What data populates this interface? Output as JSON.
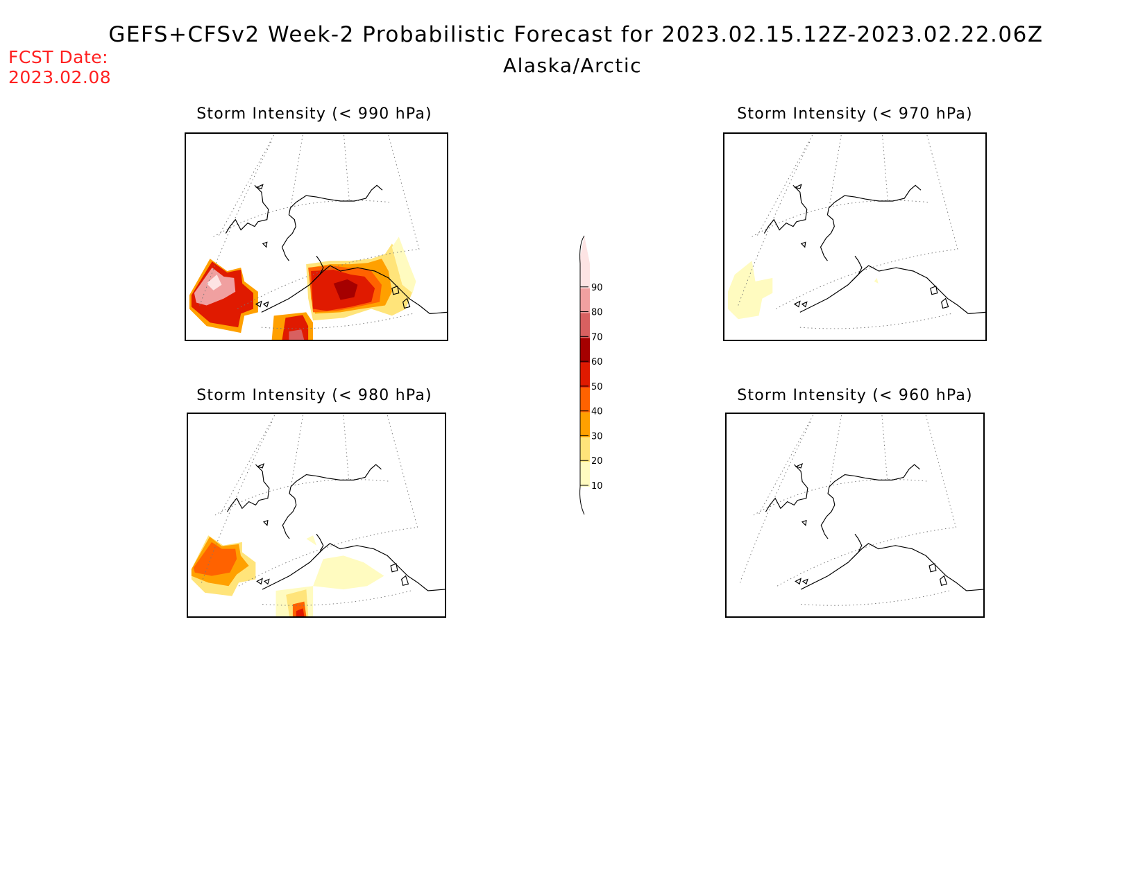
{
  "header": {
    "title": "GEFS+CFSv2 Week-2 Probabilistic Forecast for 2023.02.15.12Z-2023.02.22.06Z",
    "region": "Alaska/Arctic",
    "fcst_label": "FCST Date:",
    "fcst_date": "2023.02.08"
  },
  "panels": [
    {
      "id": "p990",
      "title": "Storm Intensity (< 990 hPa)"
    },
    {
      "id": "p970",
      "title": "Storm Intensity (< 970 hPa)"
    },
    {
      "id": "p980",
      "title": "Storm Intensity (< 980 hPa)"
    },
    {
      "id": "p960",
      "title": "Storm Intensity (< 960 hPa)"
    }
  ],
  "colorbar": {
    "levels": [
      "10",
      "20",
      "30",
      "40",
      "50",
      "60",
      "70",
      "80",
      "90"
    ],
    "colors": [
      "#fffbc0",
      "#ffe47a",
      "#ffa000",
      "#ff6200",
      "#e01a00",
      "#a50000",
      "#d86060",
      "#f0a0a0",
      "#fde4e4"
    ]
  }
}
